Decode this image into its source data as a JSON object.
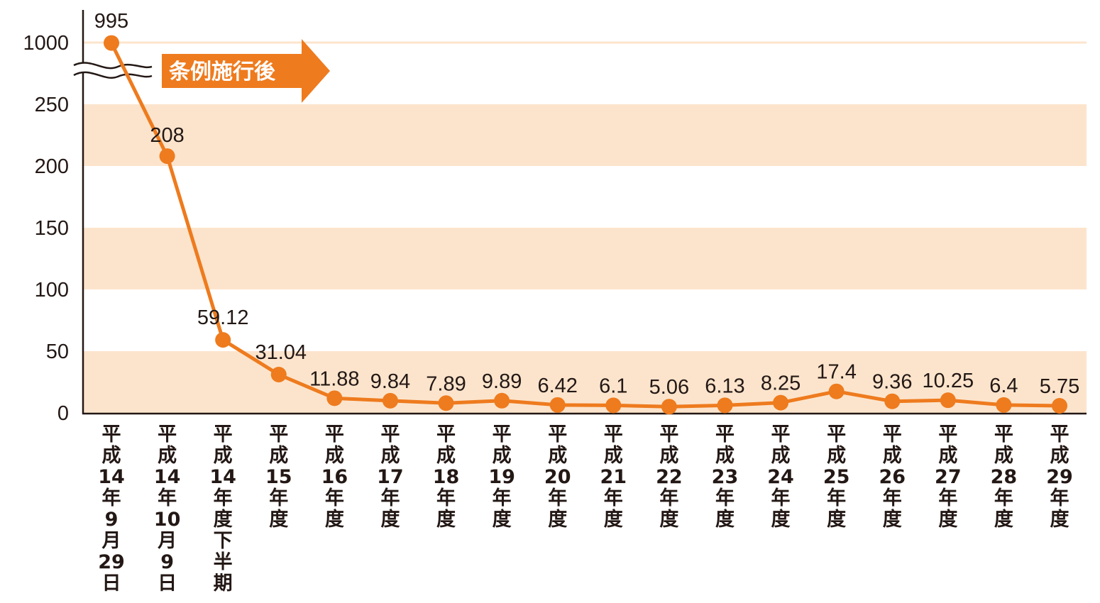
{
  "chart_data": {
    "type": "line",
    "title": "",
    "xlabel": "",
    "ylabel": "",
    "y_ticks": [
      {
        "value": 0,
        "label": "0"
      },
      {
        "value": 50,
        "label": "50"
      },
      {
        "value": 100,
        "label": "100"
      },
      {
        "value": 150,
        "label": "150"
      },
      {
        "value": 200,
        "label": "200"
      },
      {
        "value": 250,
        "label": "250"
      },
      {
        "value": 1000,
        "label": "1000"
      }
    ],
    "ylim": [
      0,
      1000
    ],
    "y_axis_break": [
      250,
      1000
    ],
    "grid": "alternating horizontal bands",
    "band_color": "#fce4cc",
    "series_color": "#ee7b1e",
    "arrow_color": "#ee7b1e",
    "categories": [
      "平成14年9月29日",
      "平成14年10月9日",
      "平成14年度下半期",
      "平成15年度",
      "平成16年度",
      "平成17年度",
      "平成18年度",
      "平成19年度",
      "平成20年度",
      "平成21年度",
      "平成22年度",
      "平成23年度",
      "平成24年度",
      "平成25年度",
      "平成26年度",
      "平成27年度",
      "平成28年度",
      "平成29年度"
    ],
    "category_lines": [
      [
        "平",
        "成",
        "14",
        "年",
        "9",
        "月",
        "29",
        "日"
      ],
      [
        "平",
        "成",
        "14",
        "年",
        "10",
        "月",
        "9",
        "日"
      ],
      [
        "平",
        "成",
        "14",
        "年",
        "度",
        "下",
        "半",
        "期"
      ],
      [
        "平",
        "成",
        "15",
        "年",
        "度"
      ],
      [
        "平",
        "成",
        "16",
        "年",
        "度"
      ],
      [
        "平",
        "成",
        "17",
        "年",
        "度"
      ],
      [
        "平",
        "成",
        "18",
        "年",
        "度"
      ],
      [
        "平",
        "成",
        "19",
        "年",
        "度"
      ],
      [
        "平",
        "成",
        "20",
        "年",
        "度"
      ],
      [
        "平",
        "成",
        "21",
        "年",
        "度"
      ],
      [
        "平",
        "成",
        "22",
        "年",
        "度"
      ],
      [
        "平",
        "成",
        "23",
        "年",
        "度"
      ],
      [
        "平",
        "成",
        "24",
        "年",
        "度"
      ],
      [
        "平",
        "成",
        "25",
        "年",
        "度"
      ],
      [
        "平",
        "成",
        "26",
        "年",
        "度"
      ],
      [
        "平",
        "成",
        "27",
        "年",
        "度"
      ],
      [
        "平",
        "成",
        "28",
        "年",
        "度"
      ],
      [
        "平",
        "成",
        "29",
        "年",
        "度"
      ]
    ],
    "values": [
      995,
      208,
      59.12,
      31.04,
      11.88,
      9.84,
      7.89,
      9.89,
      6.42,
      6.1,
      5.06,
      6.13,
      8.25,
      17.4,
      9.36,
      10.25,
      6.4,
      5.75
    ],
    "value_labels": [
      "995",
      "208",
      "59.12",
      "31.04",
      "11.88",
      "9.84",
      "7.89",
      "9.89",
      "6.42",
      "6.1",
      "5.06",
      "6.13",
      "8.25",
      "17.4",
      "9.36",
      "10.25",
      "6.4",
      "5.75"
    ],
    "annotations": [
      {
        "text": "条例施行後",
        "shape": "right-arrow"
      }
    ]
  }
}
